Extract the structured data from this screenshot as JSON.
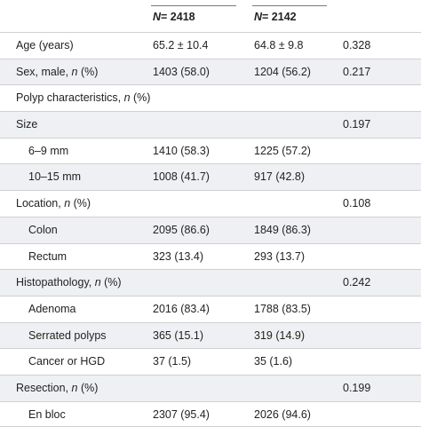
{
  "header": {
    "group1": {
      "prefix": "N",
      "value": "= 2418"
    },
    "group2": {
      "prefix": "N",
      "value": "= 2142"
    }
  },
  "rows": [
    {
      "label": "Age (years)",
      "italic": "",
      "suffix": "",
      "g1": "65.2 ± 10.4",
      "g2": "64.8 ± 9.8",
      "p": "0.328",
      "indent": false,
      "shaded": false
    },
    {
      "label": "Sex, male, ",
      "italic": "n",
      "suffix": " (%)",
      "g1": "1403 (58.0)",
      "g2": "1204 (56.2)",
      "p": "0.217",
      "indent": false,
      "shaded": true
    },
    {
      "label": "Polyp characteristics, ",
      "italic": "n",
      "suffix": " (%)",
      "g1": "",
      "g2": "",
      "p": "",
      "indent": false,
      "shaded": false
    },
    {
      "label": "Size",
      "italic": "",
      "suffix": "",
      "g1": "",
      "g2": "",
      "p": "0.197",
      "indent": false,
      "shaded": true
    },
    {
      "label": "6–9 mm",
      "italic": "",
      "suffix": "",
      "g1": "1410 (58.3)",
      "g2": "1225 (57.2)",
      "p": "",
      "indent": true,
      "shaded": false
    },
    {
      "label": "10–15 mm",
      "italic": "",
      "suffix": "",
      "g1": "1008 (41.7)",
      "g2": "917 (42.8)",
      "p": "",
      "indent": true,
      "shaded": true
    },
    {
      "label": "Location, ",
      "italic": "n",
      "suffix": " (%)",
      "g1": "",
      "g2": "",
      "p": "0.108",
      "indent": false,
      "shaded": false
    },
    {
      "label": "Colon",
      "italic": "",
      "suffix": "",
      "g1": "2095 (86.6)",
      "g2": "1849 (86.3)",
      "p": "",
      "indent": true,
      "shaded": true
    },
    {
      "label": "Rectum",
      "italic": "",
      "suffix": "",
      "g1": "323 (13.4)",
      "g2": "293 (13.7)",
      "p": "",
      "indent": true,
      "shaded": false
    },
    {
      "label": "Histopathology, ",
      "italic": "n",
      "suffix": " (%)",
      "g1": "",
      "g2": "",
      "p": "0.242",
      "indent": false,
      "shaded": true
    },
    {
      "label": "Adenoma",
      "italic": "",
      "suffix": "",
      "g1": "2016 (83.4)",
      "g2": "1788 (83.5)",
      "p": "",
      "indent": true,
      "shaded": false
    },
    {
      "label": "Serrated polyps",
      "italic": "",
      "suffix": "",
      "g1": "365 (15.1)",
      "g2": "319 (14.9)",
      "p": "",
      "indent": true,
      "shaded": true
    },
    {
      "label": "Cancer or HGD",
      "italic": "",
      "suffix": "",
      "g1": "37 (1.5)",
      "g2": "35 (1.6)",
      "p": "",
      "indent": true,
      "shaded": false
    },
    {
      "label": "Resection, ",
      "italic": "n",
      "suffix": " (%)",
      "g1": "",
      "g2": "",
      "p": "0.199",
      "indent": false,
      "shaded": true
    },
    {
      "label": "En bloc",
      "italic": "",
      "suffix": "",
      "g1": "2307 (95.4)",
      "g2": "2026 (94.6)",
      "p": "",
      "indent": true,
      "shaded": false
    }
  ]
}
